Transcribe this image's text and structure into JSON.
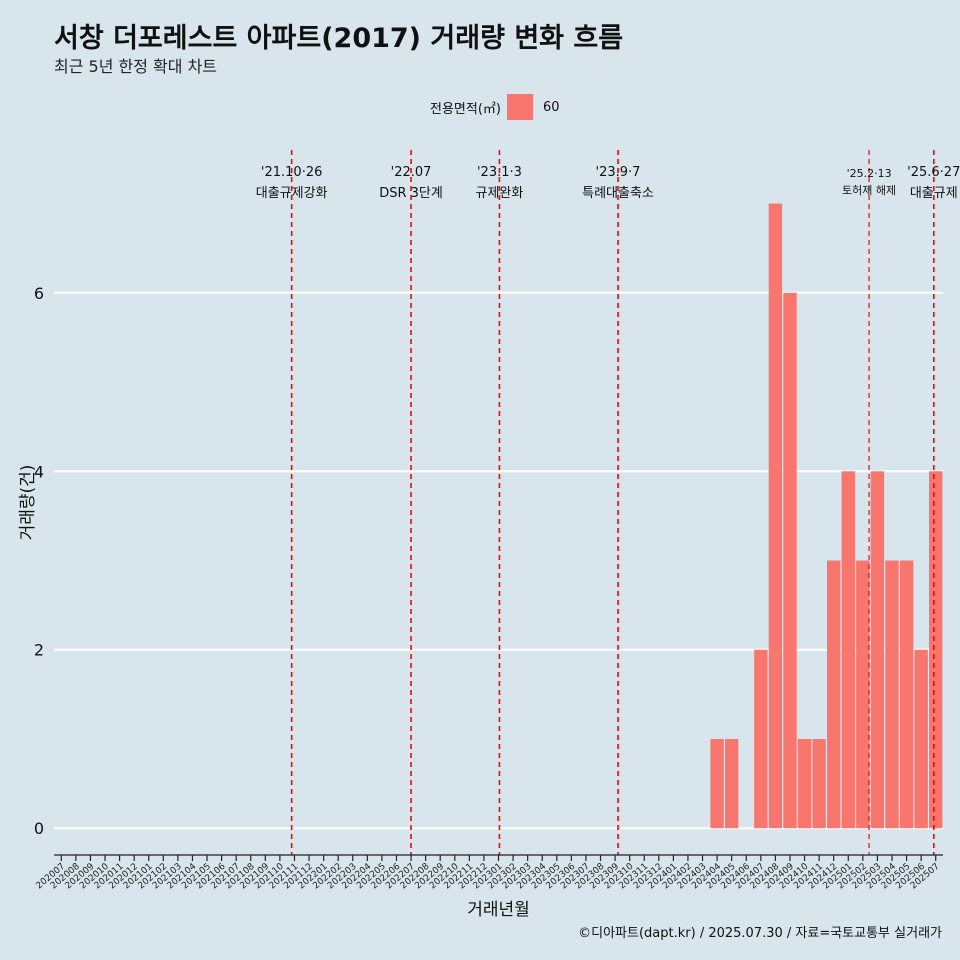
{
  "title": "서창 더포레스트 아파트(2017) 거래량 변화 흐름",
  "subtitle": "최근 5년 한정 확대 차트",
  "legend": {
    "title": "전용면적(㎡)",
    "items": [
      {
        "label": "60",
        "color": "#f8766d"
      }
    ]
  },
  "caption": "©디아파트(dapt.kr) / 2025.07.30 / 자료=국토교통부 실거래가",
  "chart_data": {
    "type": "bar",
    "xlabel": "거래년월",
    "ylabel": "거래량(건)",
    "ylim": [
      -0.3,
      7.6
    ],
    "yticks": [
      0,
      2,
      4,
      6
    ],
    "grid": true,
    "legend_position": "top",
    "categories": [
      "202007",
      "202008",
      "202009",
      "202010",
      "202011",
      "202012",
      "202101",
      "202102",
      "202103",
      "202104",
      "202105",
      "202106",
      "202107",
      "202108",
      "202109",
      "202110",
      "202111",
      "202112",
      "202201",
      "202202",
      "202203",
      "202204",
      "202205",
      "202206",
      "202207",
      "202208",
      "202209",
      "202210",
      "202211",
      "202212",
      "202301",
      "202302",
      "202303",
      "202304",
      "202305",
      "202306",
      "202307",
      "202308",
      "202309",
      "202310",
      "202311",
      "202312",
      "202401",
      "202402",
      "202403",
      "202404",
      "202405",
      "202406",
      "202407",
      "202408",
      "202409",
      "202410",
      "202411",
      "202412",
      "202501",
      "202502",
      "202503",
      "202504",
      "202505",
      "202506",
      "202507"
    ],
    "series": [
      {
        "name": "60",
        "color": "#f8766d",
        "values": [
          0,
          0,
          0,
          0,
          0,
          0,
          0,
          0,
          0,
          0,
          0,
          0,
          0,
          0,
          0,
          0,
          0,
          0,
          0,
          0,
          0,
          0,
          0,
          0,
          0,
          0,
          0,
          0,
          0,
          0,
          0,
          0,
          0,
          0,
          0,
          0,
          0,
          0,
          0,
          0,
          0,
          0,
          0,
          0,
          0,
          1,
          1,
          0,
          2,
          7,
          6,
          1,
          1,
          3,
          4,
          3,
          4,
          3,
          3,
          2,
          4
        ]
      }
    ],
    "annotations": [
      {
        "date": "2021-10-26",
        "line1": "'21.10·26",
        "line2": "대출규제강화",
        "size": "normal"
      },
      {
        "date": "2022-07-01",
        "line1": "'22.07",
        "line2": "DSR 3단계",
        "size": "normal"
      },
      {
        "date": "2023-01-03",
        "line1": "'23.1·3",
        "line2": "규제완화",
        "size": "normal"
      },
      {
        "date": "2023-09-07",
        "line1": "'23.9·7",
        "line2": "특례대출축소",
        "size": "normal"
      },
      {
        "date": "2025-02-13",
        "line1": "'25.2·13",
        "line2": "토허제 해제",
        "size": "small"
      },
      {
        "date": "2025-06-27",
        "line1": "'25.6·27",
        "line2": "대출규제",
        "size": "normal"
      }
    ]
  }
}
